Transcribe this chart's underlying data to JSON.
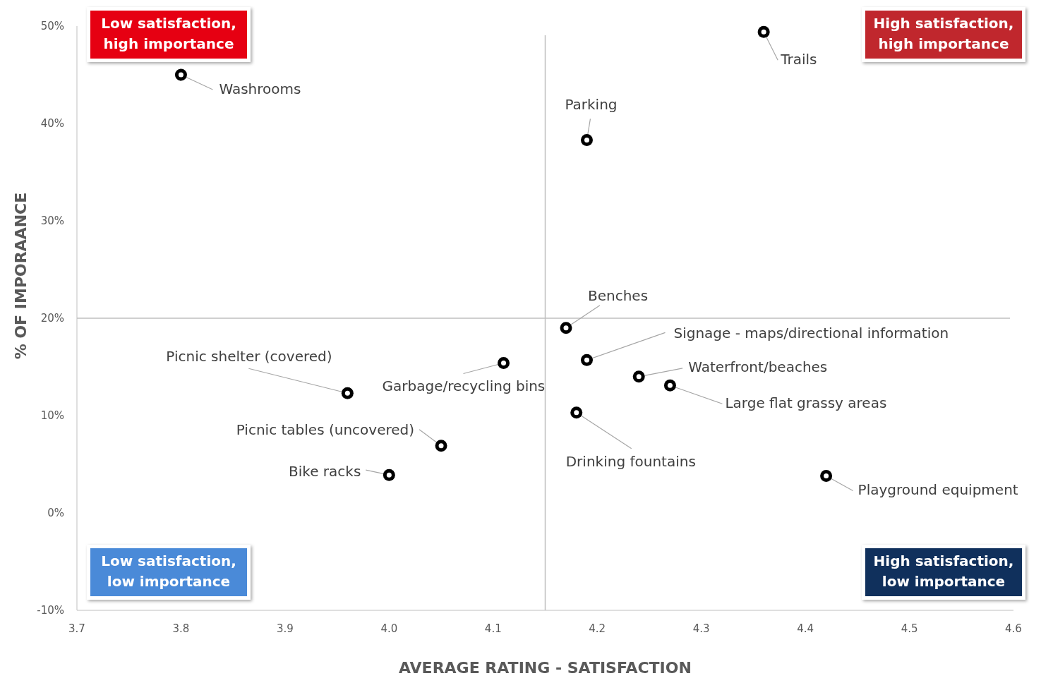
{
  "chart_data": {
    "type": "scatter",
    "xlabel": "AVERAGE RATING - SATISFACTION",
    "ylabel": "% OF IMPORAANCE",
    "x": [
      3.8,
      4.36,
      4.19,
      4.17,
      4.19,
      4.24,
      4.27,
      4.18,
      4.42,
      4.11,
      3.96,
      4.05,
      4.0
    ],
    "series": [
      {
        "color": "#000000",
        "values": [
          45,
          49.4,
          38.3,
          19,
          15.7,
          14,
          13.1,
          10.3,
          3.8,
          15.4,
          12.3,
          6.9,
          3.9
        ]
      }
    ],
    "marker": "circle",
    "grid": false,
    "xlim": [
      3.7,
      4.6
    ],
    "xticks": [
      {
        "value": 3.7,
        "label": "3.7"
      },
      {
        "value": 3.8,
        "label": "3.8"
      },
      {
        "value": 3.9,
        "label": "3.9"
      },
      {
        "value": 4,
        "label": "4.0"
      },
      {
        "value": 4.1,
        "label": "4.1"
      },
      {
        "value": 4.2,
        "label": "4.2"
      },
      {
        "value": 4.3,
        "label": "4.3"
      },
      {
        "value": 4.4,
        "label": "4.4"
      },
      {
        "value": 4.5,
        "label": "4.5"
      },
      {
        "value": 4.6,
        "label": "4.6"
      }
    ],
    "ylim": [
      -10,
      50
    ],
    "yticks": [
      {
        "value": -10,
        "label": "-10%"
      },
      {
        "value": 0,
        "label": "0%"
      },
      {
        "value": 10,
        "label": "10%"
      },
      {
        "value": 20,
        "label": "20%"
      },
      {
        "value": 30,
        "label": "30%"
      },
      {
        "value": 40,
        "label": "40%"
      },
      {
        "value": 50,
        "label": "50%"
      }
    ],
    "ref_lines": [
      {
        "axis": "x",
        "value": 4.15,
        "color": "#bfbfbf"
      },
      {
        "axis": "y",
        "value": 20,
        "color": "#bfbfbf"
      }
    ],
    "annotations": [
      "Low satisfaction, high importance",
      "High satisfaction, high importance",
      "Low satisfaction, low importance",
      "High satisfaction, low importance",
      {
        "text": "Washrooms",
        "x": 3.8,
        "y": 45
      },
      {
        "text": "Trails",
        "x": 4.36,
        "y": 49.4
      },
      {
        "text": "Parking",
        "x": 4.19,
        "y": 38.3
      },
      {
        "text": "Benches",
        "x": 4.17,
        "y": 19
      },
      {
        "text": "Signage - maps/directional information",
        "x": 4.19,
        "y": 15.7
      },
      {
        "text": "Waterfront/beaches",
        "x": 4.24,
        "y": 14
      },
      {
        "text": "Large flat grassy areas",
        "x": 4.27,
        "y": 13.1
      },
      {
        "text": "Drinking fountains",
        "x": 4.18,
        "y": 10.3
      },
      {
        "text": "Playground equipment",
        "x": 4.42,
        "y": 3.8
      },
      {
        "text": "Garbage/recycling bins",
        "x": 4.11,
        "y": 15.4
      },
      {
        "text": "Picnic shelter (covered)",
        "x": 3.96,
        "y": 12.3
      },
      {
        "text": "Picnic tables (uncovered)",
        "x": 4.05,
        "y": 6.9
      },
      {
        "text": "Bike racks",
        "x": 4.0,
        "y": 3.9
      }
    ]
  }
}
